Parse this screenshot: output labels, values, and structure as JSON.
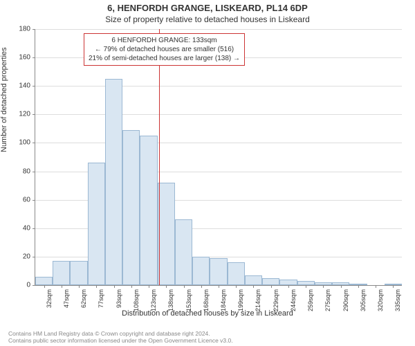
{
  "title1": "6, HENFORDH GRANGE, LISKEARD, PL14 6DP",
  "title2": "Size of property relative to detached houses in Liskeard",
  "ylabel": "Number of detached properties",
  "xlabel": "Distribution of detached houses by size in Liskeard",
  "footer1": "Contains HM Land Registry data © Crown copyright and database right 2024.",
  "footer2": "Contains public sector information licensed under the Open Government Licence v3.0.",
  "annotation_line1": "6 HENFORDH GRANGE: 133sqm",
  "annotation_line2": "← 79% of detached houses are smaller (516)",
  "annotation_line3": "21% of semi-detached houses are larger (138) →",
  "chart": {
    "type": "histogram",
    "background_color": "#ffffff",
    "grid_color": "#dddddd",
    "axis_color": "#888888",
    "bar_fill": "#d9e6f2",
    "bar_border": "#9bb8d3",
    "marker_color": "#cc3333",
    "marker_value": 133,
    "xmin": 25,
    "xmax": 345,
    "ymin": 0,
    "ymax": 180,
    "bin_width_sqm": 15,
    "ytick_step": 20,
    "xtick_labels": [
      "32sqm",
      "47sqm",
      "62sqm",
      "77sqm",
      "93sqm",
      "108sqm",
      "123sqm",
      "138sqm",
      "153sqm",
      "168sqm",
      "184sqm",
      "199sqm",
      "214sqm",
      "229sqm",
      "244sqm",
      "259sqm",
      "275sqm",
      "290sqm",
      "305sqm",
      "320sqm",
      "335sqm"
    ],
    "values": [
      6,
      17,
      17,
      86,
      145,
      109,
      105,
      72,
      46,
      20,
      19,
      16,
      7,
      5,
      4,
      3,
      2,
      2,
      1,
      0,
      1
    ],
    "title_fontsize": 13,
    "subtitle_fontsize": 12,
    "axis_label_fontsize": 11,
    "tick_fontsize": 10,
    "annotation_fontsize": 10
  }
}
